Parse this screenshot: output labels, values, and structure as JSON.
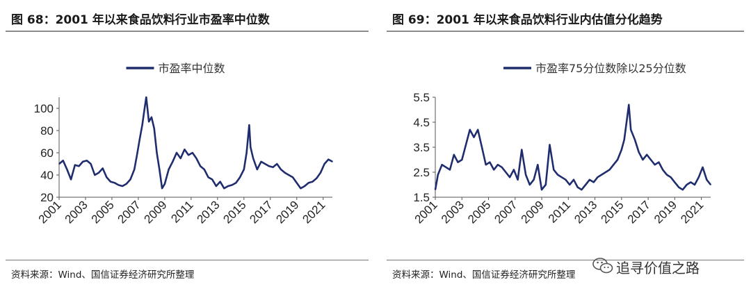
{
  "left": {
    "title": "图 68：2001 年以来食品饮料行业市盈率中位数",
    "source": "资料来源：Wind、国信证券经济研究所整理"
  },
  "right": {
    "title": "图 69：2001 年以来食品饮料行业内估值分化趋势",
    "source": "资料来源：Wind、国信证券经济研究所整理"
  },
  "watermark": {
    "text": "追寻价值之路",
    "icon": "wechat-icon"
  },
  "colors": {
    "series": "#1f2d6e",
    "axis": "#555555",
    "rule": "#8c8c8c"
  },
  "chart_data": [
    {
      "type": "line",
      "title": "",
      "xlabel": "",
      "ylabel": "",
      "xlim": [
        2001,
        2021.7
      ],
      "ylim": [
        20,
        110
      ],
      "yticks": [
        20,
        40,
        60,
        80,
        100
      ],
      "xticks": [
        "2001",
        "2003",
        "2005",
        "2007",
        "2009",
        "2011",
        "2013",
        "2015",
        "2017",
        "2019",
        "2021"
      ],
      "grid": false,
      "legend": "top-center",
      "series": [
        {
          "name": "市盈率中位数",
          "x": [
            2001,
            2001.3,
            2001.6,
            2001.9,
            2002.2,
            2002.5,
            2002.8,
            2003.1,
            2003.4,
            2003.7,
            2004,
            2004.3,
            2004.6,
            2004.9,
            2005.2,
            2005.5,
            2005.8,
            2006.1,
            2006.4,
            2006.7,
            2006.9,
            2007.1,
            2007.3,
            2007.45,
            2007.6,
            2007.8,
            2008,
            2008.2,
            2008.4,
            2008.6,
            2008.8,
            2009,
            2009.3,
            2009.6,
            2009.9,
            2010.2,
            2010.5,
            2010.8,
            2011.1,
            2011.4,
            2011.7,
            2012,
            2012.3,
            2012.6,
            2012.9,
            2013.2,
            2013.5,
            2013.8,
            2014.1,
            2014.4,
            2014.7,
            2015,
            2015.2,
            2015.4,
            2015.5,
            2015.7,
            2016,
            2016.3,
            2016.6,
            2016.9,
            2017.2,
            2017.5,
            2017.8,
            2018.1,
            2018.4,
            2018.7,
            2019,
            2019.3,
            2019.6,
            2019.9,
            2020.2,
            2020.5,
            2020.8,
            2021.1,
            2021.4,
            2021.7
          ],
          "values": [
            50,
            53,
            45,
            36,
            49,
            48,
            52,
            53,
            50,
            40,
            42,
            46,
            38,
            34,
            33,
            31,
            30,
            32,
            36,
            45,
            58,
            72,
            85,
            98,
            110,
            88,
            92,
            82,
            60,
            45,
            28,
            32,
            45,
            52,
            60,
            55,
            63,
            58,
            60,
            55,
            48,
            45,
            38,
            36,
            30,
            34,
            28,
            30,
            31,
            33,
            38,
            45,
            60,
            85,
            65,
            55,
            45,
            52,
            50,
            48,
            47,
            50,
            45,
            42,
            40,
            38,
            33,
            28,
            30,
            33,
            34,
            37,
            42,
            50,
            54,
            52
          ]
        }
      ]
    },
    {
      "type": "line",
      "title": "",
      "xlabel": "",
      "ylabel": "",
      "xlim": [
        2001,
        2021.7
      ],
      "ylim": [
        1.5,
        5.5
      ],
      "yticks": [
        1.5,
        2.5,
        3.5,
        4.5,
        5.5
      ],
      "ytick_labels": [
        "1.5",
        "2.5",
        "3.5",
        "4.5",
        "5.5"
      ],
      "xticks": [
        "2001",
        "2003",
        "2005",
        "2007",
        "2009",
        "2011",
        "2013",
        "2015",
        "2017",
        "2019",
        "2021"
      ],
      "grid": false,
      "legend": "top-center",
      "series": [
        {
          "name": "市盈率75分位数除以25分位数",
          "x": [
            2001,
            2001.2,
            2001.5,
            2001.8,
            2002.1,
            2002.4,
            2002.7,
            2003,
            2003.3,
            2003.6,
            2003.9,
            2004.2,
            2004.5,
            2004.8,
            2005.1,
            2005.4,
            2005.7,
            2006,
            2006.3,
            2006.6,
            2006.9,
            2007.2,
            2007.5,
            2007.8,
            2008.1,
            2008.4,
            2008.7,
            2009,
            2009.3,
            2009.6,
            2009.9,
            2010.2,
            2010.5,
            2010.8,
            2011.1,
            2011.4,
            2011.7,
            2012,
            2012.3,
            2012.6,
            2012.9,
            2013.2,
            2013.5,
            2013.8,
            2014.1,
            2014.4,
            2014.7,
            2015,
            2015.2,
            2015.4,
            2015.55,
            2015.7,
            2016,
            2016.3,
            2016.6,
            2016.9,
            2017.2,
            2017.5,
            2017.8,
            2018.1,
            2018.4,
            2018.7,
            2019,
            2019.3,
            2019.6,
            2019.9,
            2020.2,
            2020.5,
            2020.8,
            2021.1,
            2021.4,
            2021.7
          ],
          "values": [
            1.8,
            2.4,
            2.8,
            2.7,
            2.6,
            3.2,
            2.9,
            3.0,
            3.6,
            4.2,
            3.9,
            4.2,
            3.5,
            2.8,
            2.9,
            2.6,
            2.8,
            2.7,
            2.5,
            2.3,
            2.6,
            2.2,
            3.4,
            2.4,
            2.0,
            2.2,
            2.8,
            1.8,
            2.0,
            3.6,
            2.6,
            2.4,
            2.3,
            2.2,
            2.0,
            2.2,
            1.9,
            1.8,
            2.0,
            2.2,
            2.1,
            2.3,
            2.4,
            2.5,
            2.6,
            2.8,
            3.0,
            3.4,
            3.8,
            4.6,
            5.2,
            4.2,
            3.8,
            3.3,
            3.0,
            3.2,
            3.0,
            2.8,
            2.9,
            2.6,
            2.4,
            2.3,
            2.1,
            1.9,
            1.8,
            2.0,
            2.1,
            2.0,
            2.3,
            2.7,
            2.2,
            2.0
          ]
        }
      ]
    }
  ]
}
